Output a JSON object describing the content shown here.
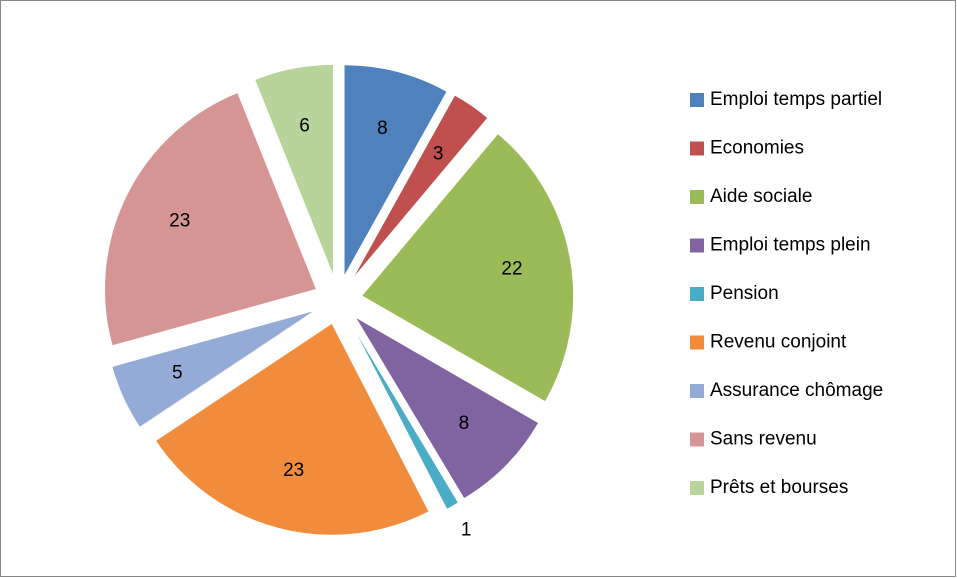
{
  "chart_data": {
    "type": "pie",
    "categories": [
      "Emploi temps partiel",
      "Economies",
      "Aide sociale",
      "Emploi temps plein",
      "Pension",
      "Revenu conjoint",
      "Assurance chômage",
      "Sans revenu",
      "Prêts et bourses"
    ],
    "values": [
      8,
      3,
      22,
      8,
      1,
      23,
      5,
      23,
      6
    ],
    "colors": [
      "#4f81bd",
      "#c0504d",
      "#9bbb59",
      "#8064a2",
      "#4bacc6",
      "#f08c3c",
      "#95abd7",
      "#d69595",
      "#b8d49a"
    ],
    "exploded": true,
    "legend": "right"
  }
}
